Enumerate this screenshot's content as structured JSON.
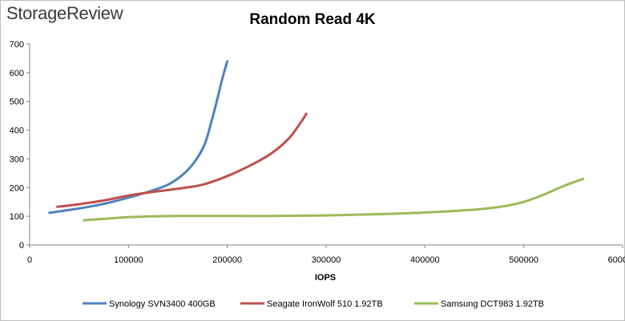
{
  "brand": {
    "logo_text": "StorageReview"
  },
  "chart_data": {
    "type": "line",
    "title": "Random Read 4K",
    "xlabel": "IOPS",
    "ylabel": "",
    "xlim": [
      0,
      600000
    ],
    "ylim": [
      0,
      700
    ],
    "xticks": [
      0,
      100000,
      200000,
      300000,
      400000,
      500000,
      600000
    ],
    "xtick_labels": [
      "0",
      "100000",
      "200000",
      "300000",
      "400000",
      "500000",
      "600000"
    ],
    "yticks": [
      0,
      100,
      200,
      300,
      400,
      500,
      600,
      700
    ],
    "ytick_labels": [
      "0",
      "100",
      "200",
      "300",
      "400",
      "500",
      "600",
      "700"
    ],
    "grid": false,
    "legend_position": "bottom",
    "series": [
      {
        "name": "Synology SVN3400 400GB",
        "color": "#4f81bd",
        "points": [
          [
            20000,
            112
          ],
          [
            40000,
            122
          ],
          [
            60000,
            133
          ],
          [
            80000,
            147
          ],
          [
            100000,
            165
          ],
          [
            120000,
            185
          ],
          [
            140000,
            210
          ],
          [
            155000,
            245
          ],
          [
            167000,
            290
          ],
          [
            177000,
            350
          ],
          [
            184000,
            430
          ],
          [
            190000,
            510
          ],
          [
            195000,
            580
          ],
          [
            200000,
            640
          ]
        ]
      },
      {
        "name": "Seagate IronWolf 510 1.92TB",
        "color": "#c0504d",
        "points": [
          [
            28000,
            133
          ],
          [
            50000,
            142
          ],
          [
            75000,
            155
          ],
          [
            100000,
            172
          ],
          [
            125000,
            185
          ],
          [
            150000,
            196
          ],
          [
            175000,
            210
          ],
          [
            200000,
            240
          ],
          [
            225000,
            280
          ],
          [
            245000,
            320
          ],
          [
            262000,
            370
          ],
          [
            275000,
            430
          ],
          [
            280000,
            457
          ]
        ]
      },
      {
        "name": "Samsung DCT983 1.92TB",
        "color": "#9bbb59",
        "points": [
          [
            55000,
            86
          ],
          [
            80000,
            92
          ],
          [
            100000,
            97
          ],
          [
            150000,
            101
          ],
          [
            200000,
            101
          ],
          [
            250000,
            101
          ],
          [
            300000,
            103
          ],
          [
            350000,
            107
          ],
          [
            400000,
            113
          ],
          [
            450000,
            123
          ],
          [
            480000,
            135
          ],
          [
            500000,
            150
          ],
          [
            520000,
            175
          ],
          [
            540000,
            205
          ],
          [
            560000,
            230
          ]
        ]
      }
    ]
  }
}
